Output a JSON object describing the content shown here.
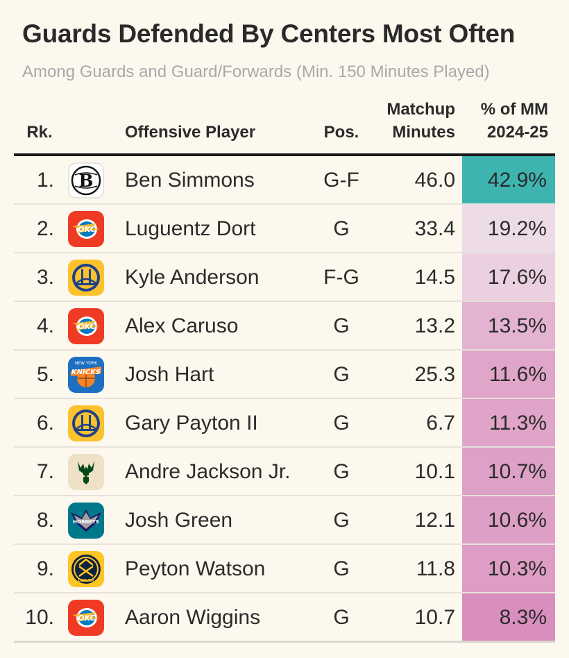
{
  "title": "Guards Defended By Centers Most Often",
  "subtitle": "Among Guards and Guard/Forwards (Min. 150 Minutes Played)",
  "headers": {
    "rank": "Rk.",
    "player": "Offensive Player",
    "pos": "Pos.",
    "minutes_line1": "Matchup",
    "minutes_line2": "Minutes",
    "pct_line1": "% of MM",
    "pct_line2": "2024-25"
  },
  "colors": {
    "top_pct": "#3eb4b1",
    "pct_light": "#eddbe6",
    "pct_dark": "#d98fbd"
  },
  "chart_data": {
    "type": "table",
    "title": "Guards Defended By Centers Most Often",
    "subtitle": "Among Guards and Guard/Forwards (Min. 150 Minutes Played)",
    "columns": [
      "Rk.",
      "Offensive Player",
      "Pos.",
      "Matchup Minutes",
      "% of MM 2024-25"
    ],
    "rows": [
      {
        "rank": "1.",
        "team_icon": "nets-logo-icon",
        "player": "Ben Simmons",
        "pos": "G-F",
        "minutes": "46.0",
        "pct": "42.9%",
        "pct_value": 42.9
      },
      {
        "rank": "2.",
        "team_icon": "thunder-logo-icon",
        "player": "Luguentz Dort",
        "pos": "G",
        "minutes": "33.4",
        "pct": "19.2%",
        "pct_value": 19.2
      },
      {
        "rank": "3.",
        "team_icon": "warriors-logo-icon",
        "player": "Kyle Anderson",
        "pos": "F-G",
        "minutes": "14.5",
        "pct": "17.6%",
        "pct_value": 17.6
      },
      {
        "rank": "4.",
        "team_icon": "thunder-logo-icon",
        "player": "Alex Caruso",
        "pos": "G",
        "minutes": "13.2",
        "pct": "13.5%",
        "pct_value": 13.5
      },
      {
        "rank": "5.",
        "team_icon": "knicks-logo-icon",
        "player": "Josh Hart",
        "pos": "G",
        "minutes": "25.3",
        "pct": "11.6%",
        "pct_value": 11.6
      },
      {
        "rank": "6.",
        "team_icon": "warriors-logo-icon",
        "player": "Gary Payton II",
        "pos": "G",
        "minutes": "6.7",
        "pct": "11.3%",
        "pct_value": 11.3
      },
      {
        "rank": "7.",
        "team_icon": "bucks-logo-icon",
        "player": "Andre Jackson Jr.",
        "pos": "G",
        "minutes": "10.1",
        "pct": "10.7%",
        "pct_value": 10.7
      },
      {
        "rank": "8.",
        "team_icon": "hornets-logo-icon",
        "player": "Josh Green",
        "pos": "G",
        "minutes": "12.1",
        "pct": "10.6%",
        "pct_value": 10.6
      },
      {
        "rank": "9.",
        "team_icon": "nuggets-logo-icon",
        "player": "Peyton Watson",
        "pos": "G",
        "minutes": "11.8",
        "pct": "10.3%",
        "pct_value": 10.3
      },
      {
        "rank": "10.",
        "team_icon": "thunder-logo-icon",
        "player": "Aaron Wiggins",
        "pos": "G",
        "minutes": "10.7",
        "pct": "8.3%",
        "pct_value": 8.3
      }
    ]
  }
}
